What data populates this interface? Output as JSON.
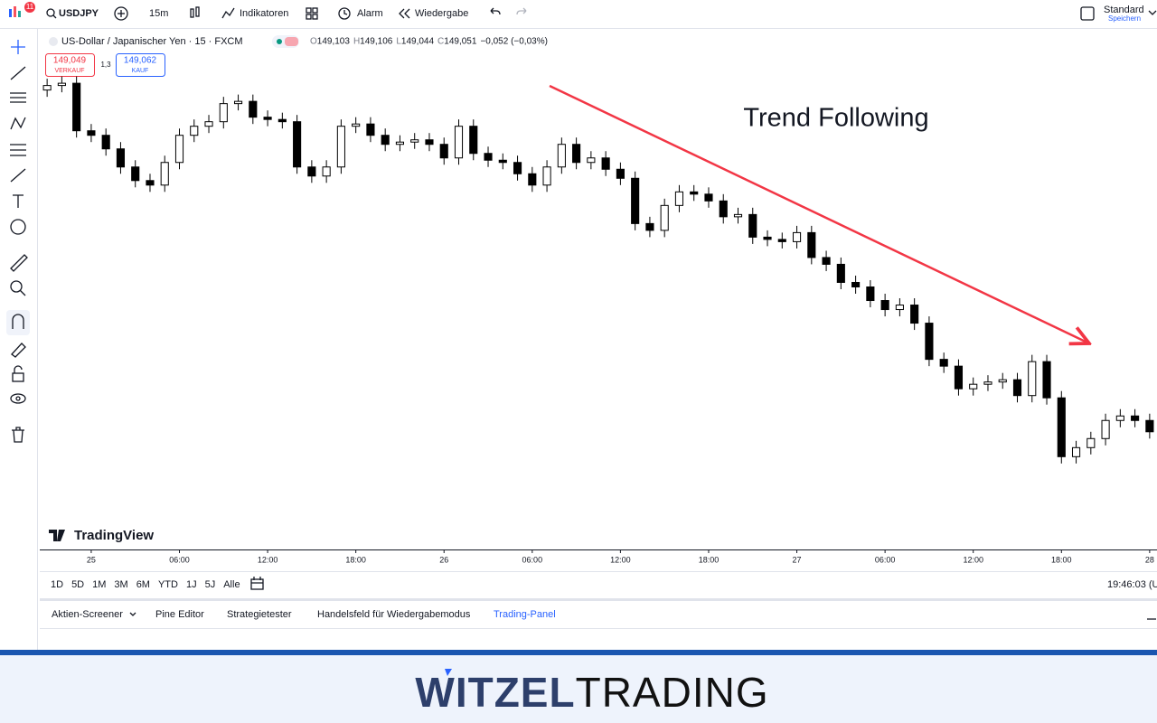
{
  "toolbar": {
    "badge": "11",
    "symbol": "USDJPY",
    "interval": "15m",
    "indicators": "Indikatoren",
    "alert": "Alarm",
    "replay": "Wiedergabe",
    "layout": "Standard",
    "save": "Speichern"
  },
  "quote": {
    "sell_price": "149,049",
    "sell_label": "VERKAUF",
    "spread": "1,3",
    "buy_price": "149,062",
    "buy_label": "KAUF"
  },
  "chart_data": {
    "type": "candlestick",
    "title": "US-Dollar / Japanischer Yen · 15 · FXCM",
    "legend": [
      {
        "label": "O",
        "value": "149,103"
      },
      {
        "label": "H",
        "value": "149,106"
      },
      {
        "label": "L",
        "value": "149,044"
      },
      {
        "label": "C",
        "value": "149,051"
      },
      {
        "label": "",
        "value": "−0,052 (−0,03%)"
      }
    ],
    "annotation": "Trend Following",
    "watermark": "TradingView",
    "up_color": "#ffffff",
    "down_color": "#000000",
    "wick_color": "#000000",
    "trend_color": "#f23645",
    "x": [
      -3,
      -2,
      -1,
      0,
      1,
      2,
      3,
      4,
      5,
      6,
      7,
      8,
      9,
      10,
      11,
      12,
      13,
      14,
      15,
      16,
      17,
      18,
      19,
      20,
      21,
      22,
      23,
      24,
      25,
      26,
      27,
      28,
      29,
      30,
      31,
      32,
      33,
      34,
      35,
      36,
      37,
      38,
      39,
      40,
      41,
      42,
      43,
      44,
      45,
      46,
      47,
      48,
      49,
      50,
      51,
      52,
      53,
      54,
      55,
      56,
      57,
      58,
      59,
      60,
      61,
      62,
      63,
      64,
      65,
      66,
      67,
      68,
      69,
      70,
      71,
      72
    ],
    "open": [
      150.58,
      150.6,
      150.61,
      150.4,
      150.38,
      150.32,
      150.24,
      150.18,
      150.16,
      150.26,
      150.38,
      150.42,
      150.44,
      150.52,
      150.53,
      150.46,
      150.45,
      150.44,
      150.24,
      150.2,
      150.24,
      150.42,
      150.43,
      150.38,
      150.34,
      150.35,
      150.36,
      150.34,
      150.28,
      150.42,
      150.3,
      150.27,
      150.26,
      150.21,
      150.16,
      150.24,
      150.34,
      150.26,
      150.28,
      150.23,
      150.19,
      149.99,
      149.96,
      150.07,
      150.13,
      150.12,
      150.09,
      150.02,
      150.03,
      149.93,
      149.92,
      149.91,
      149.95,
      149.84,
      149.81,
      149.73,
      149.71,
      149.65,
      149.61,
      149.63,
      149.55,
      149.39,
      149.36,
      149.26,
      149.28,
      149.29,
      149.3,
      149.23,
      149.38,
      149.22,
      148.96,
      149.0,
      149.04,
      149.12,
      149.14,
      149.12
    ],
    "high": [
      150.63,
      150.64,
      150.64,
      150.43,
      150.41,
      150.35,
      150.27,
      150.21,
      150.29,
      150.41,
      150.45,
      150.47,
      150.55,
      150.56,
      150.56,
      150.49,
      150.48,
      150.47,
      150.27,
      150.27,
      150.45,
      150.46,
      150.46,
      150.41,
      150.38,
      150.39,
      150.39,
      150.37,
      150.45,
      150.45,
      150.33,
      150.3,
      150.29,
      150.24,
      150.27,
      150.37,
      150.37,
      150.31,
      150.31,
      150.26,
      150.22,
      150.02,
      150.1,
      150.16,
      150.16,
      150.15,
      150.12,
      150.06,
      150.06,
      149.96,
      149.95,
      149.98,
      149.98,
      149.87,
      149.84,
      149.76,
      149.74,
      149.68,
      149.66,
      149.66,
      149.58,
      149.42,
      149.39,
      149.31,
      149.32,
      149.33,
      149.33,
      149.41,
      149.41,
      149.25,
      149.03,
      149.07,
      149.15,
      149.17,
      149.17,
      149.15
    ],
    "low": [
      150.55,
      150.57,
      150.37,
      150.35,
      150.29,
      150.21,
      150.15,
      150.13,
      150.13,
      150.23,
      150.35,
      150.39,
      150.41,
      150.49,
      150.43,
      150.42,
      150.41,
      150.21,
      150.17,
      150.17,
      150.21,
      150.39,
      150.35,
      150.31,
      150.31,
      150.32,
      150.31,
      150.25,
      150.25,
      150.27,
      150.24,
      150.23,
      150.18,
      150.13,
      150.13,
      150.21,
      150.23,
      150.23,
      150.2,
      150.16,
      149.96,
      149.93,
      149.93,
      150.04,
      150.09,
      150.06,
      149.99,
      149.99,
      149.9,
      149.89,
      149.88,
      149.88,
      149.81,
      149.78,
      149.7,
      149.68,
      149.62,
      149.58,
      149.58,
      149.52,
      149.36,
      149.33,
      149.23,
      149.23,
      149.25,
      149.26,
      149.2,
      149.2,
      149.19,
      148.93,
      148.93,
      148.97,
      149.01,
      149.09,
      149.09,
      149.04
    ],
    "close": [
      150.6,
      150.61,
      150.4,
      150.38,
      150.32,
      150.24,
      150.18,
      150.16,
      150.26,
      150.38,
      150.42,
      150.44,
      150.52,
      150.53,
      150.46,
      150.45,
      150.44,
      150.24,
      150.2,
      150.24,
      150.42,
      150.43,
      150.38,
      150.34,
      150.35,
      150.36,
      150.34,
      150.28,
      150.42,
      150.3,
      150.27,
      150.26,
      150.21,
      150.16,
      150.24,
      150.34,
      150.26,
      150.28,
      150.23,
      150.19,
      149.99,
      149.96,
      150.07,
      150.13,
      150.12,
      150.09,
      150.02,
      150.03,
      149.93,
      149.92,
      149.91,
      149.95,
      149.84,
      149.81,
      149.73,
      149.71,
      149.65,
      149.61,
      149.63,
      149.55,
      149.39,
      149.36,
      149.26,
      149.28,
      149.29,
      149.3,
      149.23,
      149.38,
      149.22,
      148.96,
      149.0,
      149.04,
      149.12,
      149.14,
      149.12,
      149.07
    ],
    "xlim": [
      -3.5,
      72.5
    ],
    "xticks": [
      {
        "value": 0,
        "label": "25"
      },
      {
        "value": 6,
        "label": "06:00"
      },
      {
        "value": 12,
        "label": "12:00"
      },
      {
        "value": 18,
        "label": "18:00"
      },
      {
        "value": 24,
        "label": "26"
      },
      {
        "value": 30,
        "label": "06:00"
      },
      {
        "value": 36,
        "label": "12:00"
      },
      {
        "value": 42,
        "label": "18:00"
      },
      {
        "value": 48,
        "label": "27"
      },
      {
        "value": 54,
        "label": "06:00"
      },
      {
        "value": 60,
        "label": "12:00"
      },
      {
        "value": 66,
        "label": "18:00"
      },
      {
        "value": 72,
        "label": "28"
      }
    ],
    "ylim": [
      148.55,
      150.85
    ]
  },
  "ranges": [
    "1D",
    "5D",
    "1M",
    "3M",
    "6M",
    "YTD",
    "1J",
    "5J",
    "Alle"
  ],
  "clock": "19:46:03 (U",
  "tabs": [
    "Aktien-Screener",
    "Pine Editor",
    "Strategietester",
    "Handelsfeld für Wiedergabemodus",
    "Trading-Panel"
  ],
  "brand": {
    "bold": "WITZEL",
    "light": "TRADING"
  }
}
